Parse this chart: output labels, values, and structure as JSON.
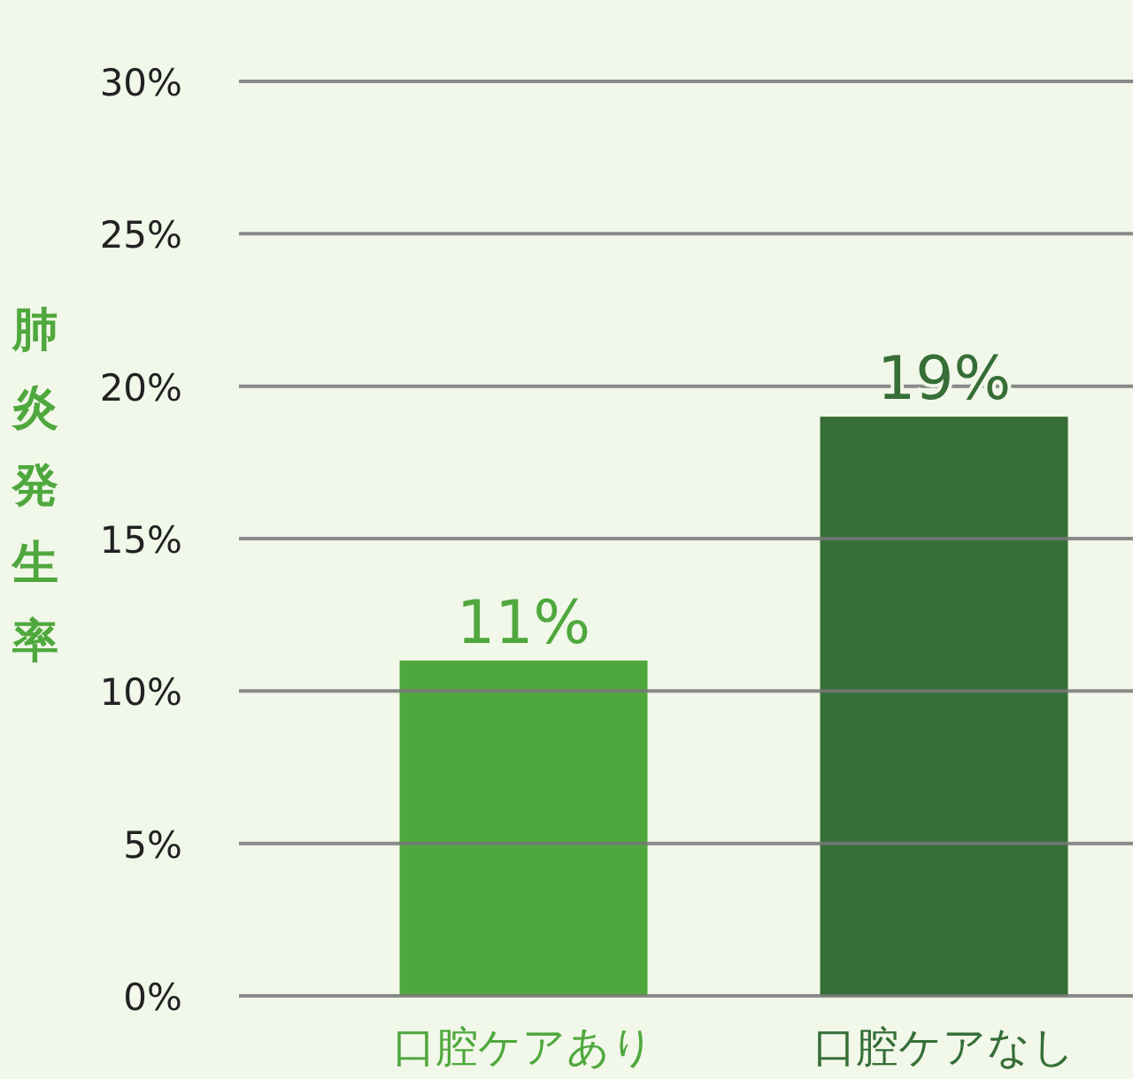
{
  "chart_data": {
    "type": "bar",
    "ylabel": "肺炎発生率",
    "categories": [
      "口腔ケアあり",
      "口腔ケアなし"
    ],
    "values": [
      11,
      19
    ],
    "colors": [
      "#4fa83d",
      "#366e37"
    ],
    "value_labels": [
      "11%",
      "19%"
    ],
    "ylim": [
      0,
      30
    ],
    "yticks": [
      {
        "value": 0,
        "label": "0%"
      },
      {
        "value": 5,
        "label": "5%"
      },
      {
        "value": 10,
        "label": "10%"
      },
      {
        "value": 15,
        "label": "15%"
      },
      {
        "value": 20,
        "label": "20%"
      },
      {
        "value": 25,
        "label": "25%"
      },
      {
        "value": 30,
        "label": "30%"
      }
    ],
    "grid": "y"
  }
}
